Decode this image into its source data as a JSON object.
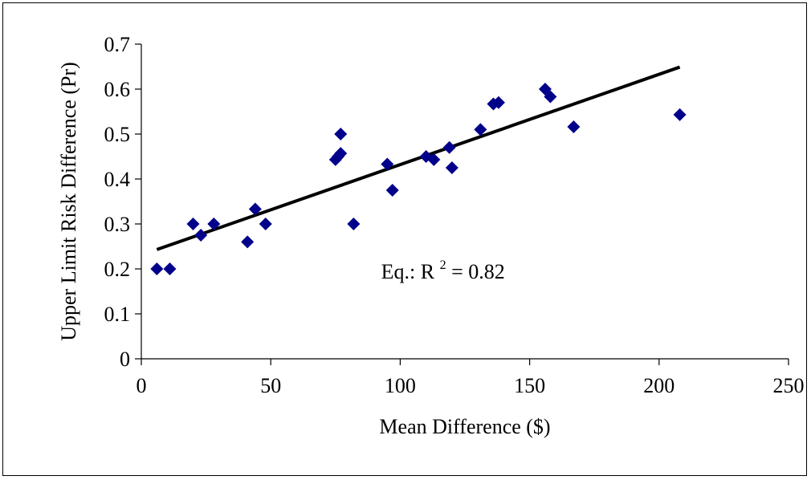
{
  "chart_data": {
    "type": "scatter",
    "title": "",
    "xlabel": "Mean Difference ($)",
    "ylabel": "Upper Limit Risk Difference (Pr)",
    "xlim": [
      0,
      250
    ],
    "ylim": [
      0,
      0.7
    ],
    "xticks": [
      0,
      50,
      100,
      150,
      200,
      250
    ],
    "yticks": [
      0,
      0.1,
      0.2,
      0.3,
      0.4,
      0.5,
      0.6,
      0.7
    ],
    "xtick_labels": [
      "0",
      "50",
      "100",
      "150",
      "200",
      "250"
    ],
    "ytick_labels": [
      "0",
      "0.1",
      "0.2",
      "0.3",
      "0.4",
      "0.5",
      "0.6",
      "0.7"
    ],
    "grid": false,
    "marker": "diamond",
    "marker_color": "#00008B",
    "series": [
      {
        "x": [
          6,
          11,
          20,
          23,
          28,
          41,
          44,
          48,
          75,
          76,
          77,
          77,
          82,
          95,
          97,
          110,
          113,
          119,
          120,
          131,
          136,
          138,
          156,
          158,
          167,
          208
        ],
        "y": [
          0.2,
          0.2,
          0.3,
          0.275,
          0.3,
          0.26,
          0.333,
          0.3,
          0.443,
          0.45,
          0.457,
          0.5,
          0.3,
          0.433,
          0.375,
          0.45,
          0.443,
          0.47,
          0.425,
          0.51,
          0.567,
          0.57,
          0.6,
          0.583,
          0.516,
          0.543
        ]
      }
    ],
    "trendline": {
      "type": "linear",
      "x_start": 6,
      "y_start": 0.243,
      "x_end": 208,
      "y_end": 0.649,
      "color": "#000000"
    },
    "annotation": {
      "eq_prefix": "Eq.: R",
      "superscript": "2",
      "eq_suffix": " = 0.82",
      "x": 110,
      "y": 0.2
    }
  }
}
